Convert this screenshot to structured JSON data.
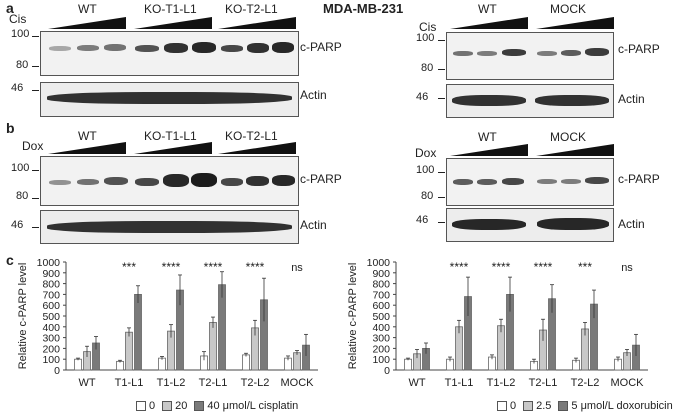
{
  "figure": {
    "panel_a": "a",
    "panel_b": "b",
    "panel_c": "c",
    "cell_line": "MDA-MB-231",
    "left_blot_groups": [
      "WT",
      "KO-T1-L1",
      "KO-T2-L1"
    ],
    "right_blot_groups": [
      "WT",
      "MOCK"
    ],
    "drug_a": "Cis",
    "drug_b": "Dox",
    "cparp": "c-PARP",
    "actin": "Actin",
    "mw_100": "100",
    "mw_80": "80",
    "mw_46": "46"
  },
  "chart_data": [
    {
      "type": "bar",
      "ylabel": "Relative c-PARP level",
      "ylim": [
        0,
        1000
      ],
      "yticks": [
        "0",
        "100",
        "200",
        "300",
        "400",
        "500",
        "600",
        "700",
        "800",
        "900",
        "1000"
      ],
      "categories": [
        "WT",
        "T1-L1",
        "T1-L2",
        "T2-L1",
        "T2-L2",
        "MOCK"
      ],
      "series": [
        {
          "name": "0",
          "color": "#ffffff",
          "values": [
            100,
            80,
            110,
            130,
            140,
            110
          ],
          "errors": [
            10,
            10,
            15,
            40,
            15,
            20
          ]
        },
        {
          "name": "20",
          "color": "#c8c8c8",
          "values": [
            170,
            350,
            360,
            440,
            390,
            160
          ],
          "errors": [
            50,
            40,
            60,
            50,
            70,
            20
          ]
        },
        {
          "name": "40 μmol/L cisplatin",
          "color": "#7a7a7a",
          "values": [
            250,
            700,
            740,
            790,
            650,
            230
          ],
          "errors": [
            60,
            80,
            140,
            120,
            200,
            100
          ]
        }
      ],
      "significance": [
        "",
        "***",
        "****",
        "****",
        "****",
        "ns"
      ]
    },
    {
      "type": "bar",
      "ylabel": "Relative c-PARP level",
      "ylim": [
        0,
        1000
      ],
      "yticks": [
        "0",
        "100",
        "200",
        "300",
        "400",
        "500",
        "600",
        "700",
        "800",
        "900",
        "1000"
      ],
      "categories": [
        "WT",
        "T1-L1",
        "T1-L2",
        "T2-L1",
        "T2-L2",
        "MOCK"
      ],
      "series": [
        {
          "name": "0",
          "color": "#ffffff",
          "values": [
            100,
            100,
            120,
            80,
            90,
            100
          ],
          "errors": [
            10,
            20,
            20,
            20,
            20,
            20
          ]
        },
        {
          "name": "2.5",
          "color": "#c8c8c8",
          "values": [
            150,
            400,
            410,
            370,
            380,
            160
          ],
          "errors": [
            40,
            60,
            60,
            100,
            60,
            30
          ]
        },
        {
          "name": "5 μmol/L doxorubicin",
          "color": "#7a7a7a",
          "values": [
            200,
            680,
            700,
            660,
            610,
            230
          ],
          "errors": [
            50,
            180,
            160,
            130,
            130,
            100
          ]
        }
      ],
      "significance": [
        "",
        "****",
        "****",
        "****",
        "***",
        "ns"
      ]
    }
  ]
}
